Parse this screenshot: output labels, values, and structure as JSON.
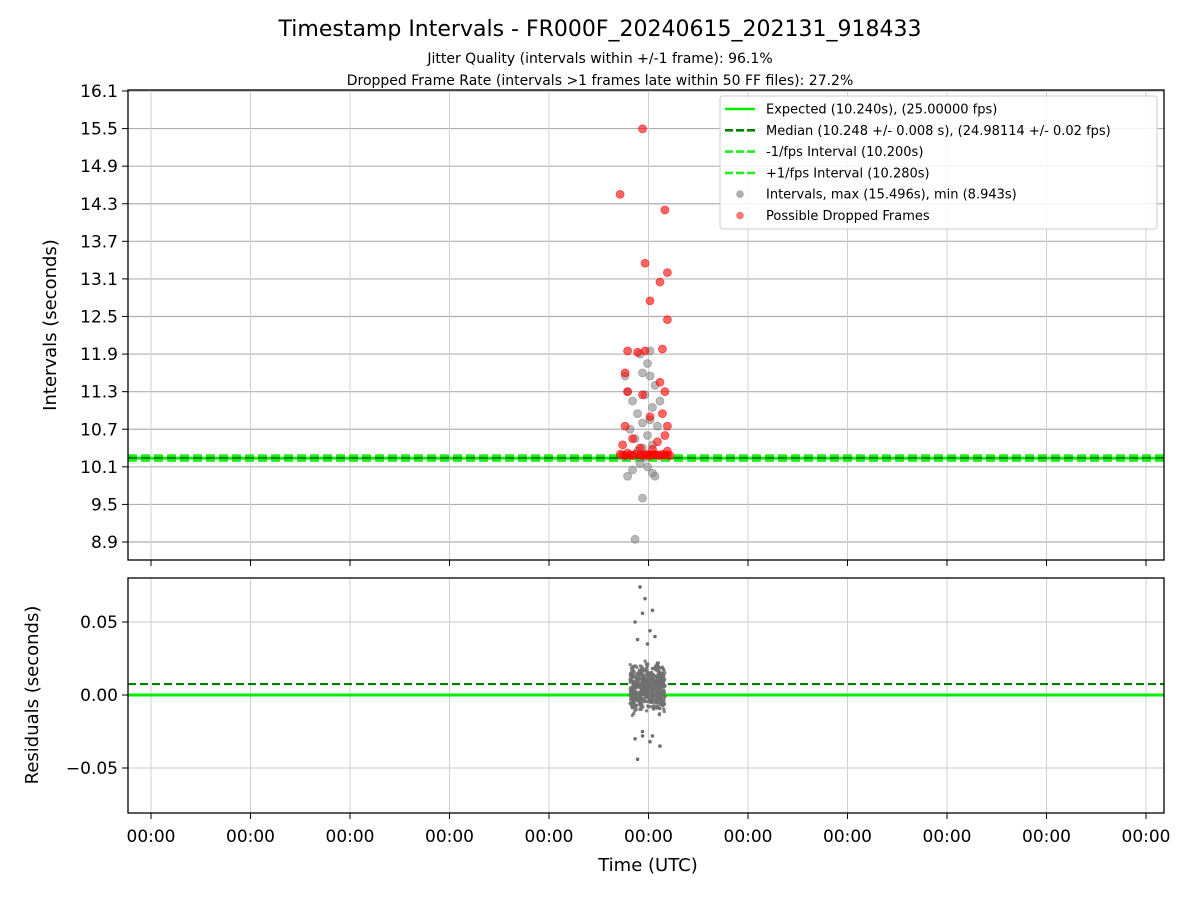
{
  "chart_data": [
    {
      "type": "scatter",
      "title": "Timestamp Intervals - FR000F_20240615_202131_918433",
      "subtitle_lines": [
        "Jitter Quality (intervals within +/-1 frame): 96.1%",
        "Dropped Frame Rate (intervals >1 frames late within 50 FF files): 27.2%"
      ],
      "xlabel": "",
      "ylabel": "Intervals (seconds)",
      "ylim": [
        8.55,
        16.1
      ],
      "yticks": [
        "16.1",
        "15.5",
        "14.9",
        "14.3",
        "13.7",
        "13.1",
        "12.5",
        "11.9",
        "11.3",
        "10.7",
        "10.1",
        "9.5",
        "8.9"
      ],
      "grid": true,
      "legend_position": "upper-right",
      "reference_lines": [
        {
          "name": "Expected (10.240s), (25.00000 fps)",
          "y": 10.24,
          "style": "solid",
          "color": "#00ee00"
        },
        {
          "name": "Median (10.248 +/- 0.008 s), (24.98114 +/- 0.02 fps)",
          "y": 10.248,
          "style": "dashed",
          "color": "#007f00"
        },
        {
          "name": "-1/fps Interval (10.200s)",
          "y": 10.2,
          "style": "dashed",
          "color": "#22ee22"
        },
        {
          "name": "+1/fps Interval (10.280s)",
          "y": 10.28,
          "style": "dashed",
          "color": "#22ee22"
        }
      ],
      "series": [
        {
          "name": "Intervals, max (15.496s), min (8.943s)",
          "color": "#808080",
          "points": [
            [
              9.75,
              8.943
            ],
            [
              9.9,
              9.6
            ],
            [
              9.6,
              9.95
            ],
            [
              10.15,
              9.95
            ],
            [
              10.1,
              10.0
            ],
            [
              9.7,
              10.05
            ],
            [
              10.0,
              10.1
            ],
            [
              9.85,
              10.15
            ],
            [
              9.95,
              10.25
            ],
            [
              10.05,
              10.3
            ],
            [
              9.8,
              10.35
            ],
            [
              9.9,
              10.4
            ],
            [
              10.1,
              10.45
            ],
            [
              9.75,
              10.55
            ],
            [
              10.0,
              10.6
            ],
            [
              9.65,
              10.7
            ],
            [
              10.2,
              10.75
            ],
            [
              9.9,
              10.8
            ],
            [
              10.05,
              10.85
            ],
            [
              9.8,
              10.95
            ],
            [
              10.1,
              11.05
            ],
            [
              9.7,
              11.15
            ],
            [
              10.25,
              11.15
            ],
            [
              9.95,
              11.25
            ],
            [
              9.6,
              11.3
            ],
            [
              10.15,
              11.4
            ],
            [
              9.55,
              11.55
            ],
            [
              10.05,
              11.55
            ],
            [
              9.9,
              11.6
            ],
            [
              10.0,
              11.75
            ],
            [
              9.85,
              11.9
            ],
            [
              10.05,
              11.95
            ]
          ]
        },
        {
          "name": "Possible Dropped Frames",
          "color": "#ff0000",
          "points": [
            [
              9.9,
              15.496
            ],
            [
              9.45,
              14.45
            ],
            [
              10.35,
              14.2
            ],
            [
              9.95,
              13.35
            ],
            [
              10.4,
              13.2
            ],
            [
              10.25,
              13.05
            ],
            [
              10.05,
              12.75
            ],
            [
              10.4,
              12.45
            ],
            [
              9.6,
              11.95
            ],
            [
              9.95,
              11.95
            ],
            [
              10.3,
              11.98
            ],
            [
              9.8,
              11.93
            ],
            [
              9.55,
              11.6
            ],
            [
              10.25,
              11.45
            ],
            [
              9.6,
              11.3
            ],
            [
              10.35,
              11.3
            ],
            [
              9.9,
              11.25
            ],
            [
              10.3,
              10.95
            ],
            [
              10.05,
              10.9
            ],
            [
              9.55,
              10.75
            ],
            [
              10.4,
              10.75
            ],
            [
              10.35,
              10.6
            ],
            [
              9.7,
              10.55
            ],
            [
              10.2,
              10.5
            ],
            [
              9.5,
              10.45
            ],
            [
              9.85,
              10.4
            ],
            [
              10.1,
              10.38
            ],
            [
              10.4,
              10.35
            ],
            [
              9.6,
              10.32
            ],
            [
              9.75,
              10.3
            ],
            [
              9.95,
              10.3
            ],
            [
              10.15,
              10.3
            ],
            [
              10.3,
              10.3
            ],
            [
              9.45,
              10.3
            ],
            [
              9.55,
              10.28
            ],
            [
              9.7,
              10.28
            ],
            [
              9.9,
              10.28
            ],
            [
              10.05,
              10.28
            ],
            [
              10.25,
              10.28
            ],
            [
              10.45,
              10.28
            ],
            [
              9.5,
              10.29
            ],
            [
              10.0,
              10.29
            ],
            [
              10.2,
              10.29
            ],
            [
              10.4,
              10.29
            ],
            [
              9.65,
              10.29
            ],
            [
              9.85,
              10.29
            ],
            [
              10.1,
              10.29
            ],
            [
              10.35,
              10.29
            ]
          ]
        }
      ]
    },
    {
      "type": "scatter",
      "xlabel": "Time (UTC)",
      "ylabel": "Residuals (seconds)",
      "ylim": [
        -0.08,
        0.08
      ],
      "yticks": [
        0.05,
        0.0,
        -0.05
      ],
      "ytick_labels": [
        "0.05",
        "0.00",
        "−0.05"
      ],
      "xtick_labels": [
        "00:00",
        "00:00",
        "00:00",
        "00:00",
        "00:00",
        "00:00",
        "00:00",
        "00:00",
        "00:00",
        "00:00",
        "00:00"
      ],
      "grid": true,
      "reference_lines": [
        {
          "y": 0.0,
          "style": "solid",
          "color": "#00ee00"
        },
        {
          "y": 0.0075,
          "style": "dashed",
          "color": "#007f00"
        }
      ],
      "series": [
        {
          "color": "#707070",
          "points_notable": [
            [
              9.85,
              0.074
            ],
            [
              9.95,
              0.066
            ],
            [
              10.1,
              0.058
            ],
            [
              9.9,
              0.056
            ],
            [
              9.75,
              0.05
            ],
            [
              10.05,
              0.044
            ],
            [
              10.15,
              0.04
            ],
            [
              9.8,
              0.038
            ],
            [
              10.0,
              0.035
            ],
            [
              9.9,
              -0.025
            ],
            [
              10.1,
              -0.028
            ],
            [
              9.75,
              -0.03
            ],
            [
              10.05,
              -0.032
            ],
            [
              9.9,
              -0.028
            ],
            [
              10.25,
              -0.035
            ],
            [
              9.8,
              -0.044
            ]
          ],
          "cluster": {
            "x_center": 10.0,
            "x_spread": 0.35,
            "y_min": -0.022,
            "y_max": 0.032,
            "count": 520
          }
        }
      ]
    }
  ],
  "legend": {
    "entries": [
      {
        "label": "Expected (10.240s), (25.00000 fps)",
        "marker": "line-solid",
        "color": "#00ee00"
      },
      {
        "label": "Median (10.248 +/- 0.008 s), (24.98114 +/- 0.02 fps)",
        "marker": "line-dashed",
        "color": "#007f00"
      },
      {
        "label": "-1/fps Interval (10.200s)",
        "marker": "line-dashed",
        "color": "#22ee22"
      },
      {
        "label": "+1/fps Interval (10.280s)",
        "marker": "line-dashed",
        "color": "#22ee22"
      },
      {
        "label": "Intervals, max (15.496s), min (8.943s)",
        "marker": "dot",
        "color": "#999999"
      },
      {
        "label": "Possible Dropped Frames",
        "marker": "dot",
        "color": "#ff5555"
      }
    ]
  }
}
